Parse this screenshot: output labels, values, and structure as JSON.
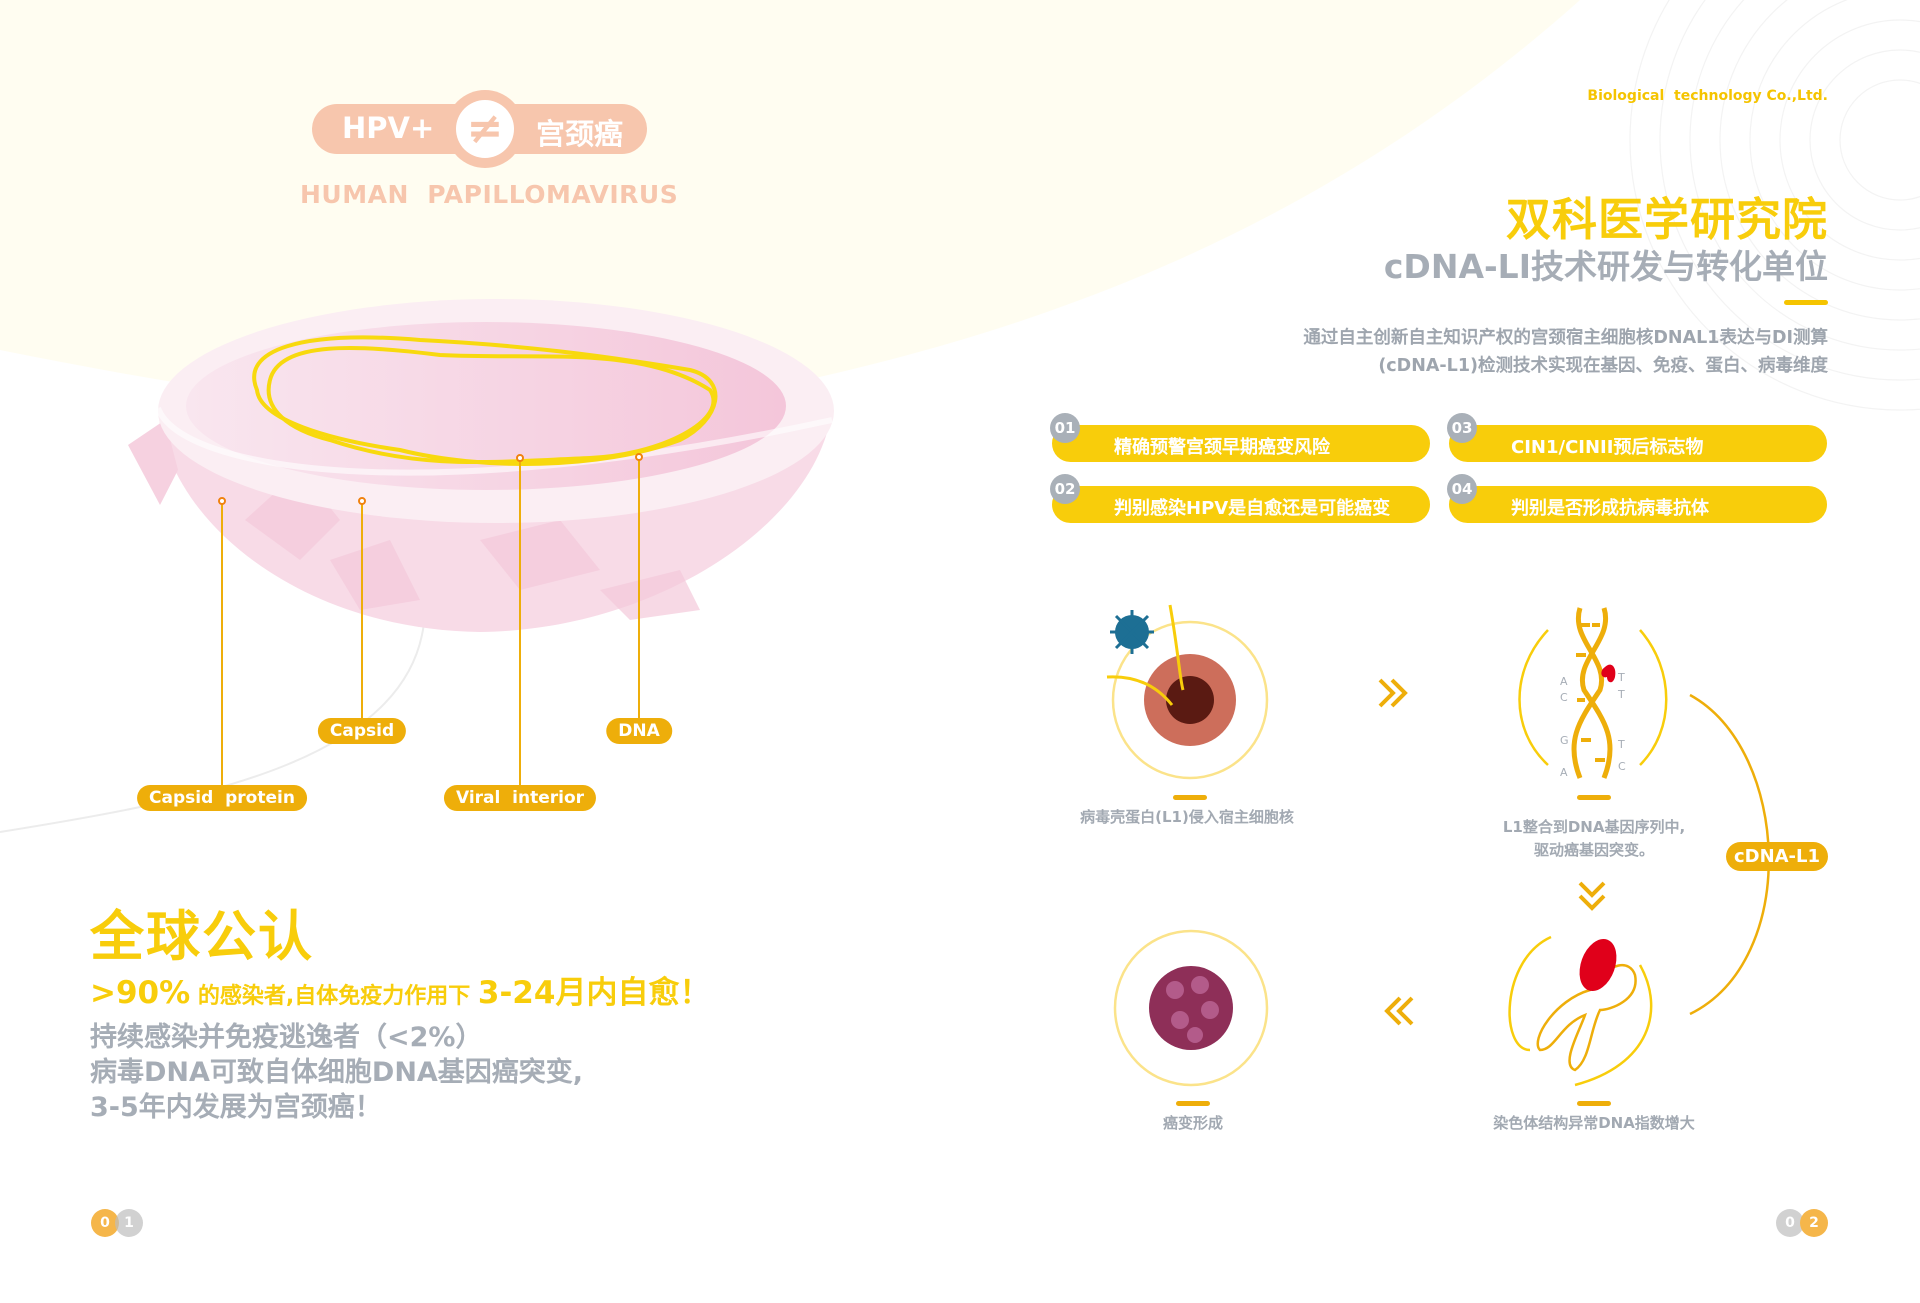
{
  "left_page": {
    "badge": {
      "left": "HPV+",
      "symbol": "≠",
      "right": "宫颈癌"
    },
    "badge_subtitle": "HUMAN  PAPILLOMAVIRUS",
    "diagram_labels": {
      "capsid_protein": "Capsid  protein",
      "capsid": "Capsid",
      "viral_interior": "Viral  interior",
      "dna": "DNA"
    },
    "consensus": {
      "title": "全球公认",
      "stat_value": ">90%",
      "stat_text": " 的感染者,自体免疫力作用下 ",
      "stat_highlight": "3-24月内自愈！",
      "lines": [
        "持续感染并免疫逃逸者（<2%）",
        "病毒DNA可致自体细胞DNA基因癌突变,",
        "3-5年内发展为宫颈癌！"
      ]
    },
    "page_number": [
      "0",
      "1"
    ]
  },
  "right_page": {
    "company": "Biological  technology Co.,Ltd.",
    "title": "双科医学研究院",
    "subtitle": "cDNA-LI技术研发与转化单位",
    "description": [
      "通过自主创新自主知识产权的宫颈宿主细胞核DNAL1表达与DI测算",
      "(cDNA-L1)检测技术实现在基因、免疫、蛋白、病毒维度"
    ],
    "features": [
      {
        "num": "01",
        "text": "精确预警宫颈早期癌变风险"
      },
      {
        "num": "02",
        "text": "判别感染HPV是自愈还是可能癌变"
      },
      {
        "num": "03",
        "text": "CIN1/CINII预后标志物"
      },
      {
        "num": "04",
        "text": "判别是否形成抗病毒抗体"
      }
    ],
    "flow": {
      "step1": "病毒壳蛋白(L1)侵入宿主细胞核",
      "step2": [
        "L1整合到DNA基因序列中,",
        "驱动癌基因突变。"
      ],
      "step3": "染色体结构异常DNA指数增大",
      "step4": "癌变形成",
      "cycle_label": "cDNA-L1",
      "base_letters": [
        "A",
        "C",
        "G",
        "A",
        "T",
        "T",
        "T",
        "C"
      ]
    },
    "page_number": [
      "0",
      "2"
    ]
  },
  "colors": {
    "yellow": "#f8cd0b",
    "amber": "#eeae0a",
    "peach": "#f7c6ad",
    "gray": "#a6adb6",
    "pink": "#f6d3e0"
  }
}
